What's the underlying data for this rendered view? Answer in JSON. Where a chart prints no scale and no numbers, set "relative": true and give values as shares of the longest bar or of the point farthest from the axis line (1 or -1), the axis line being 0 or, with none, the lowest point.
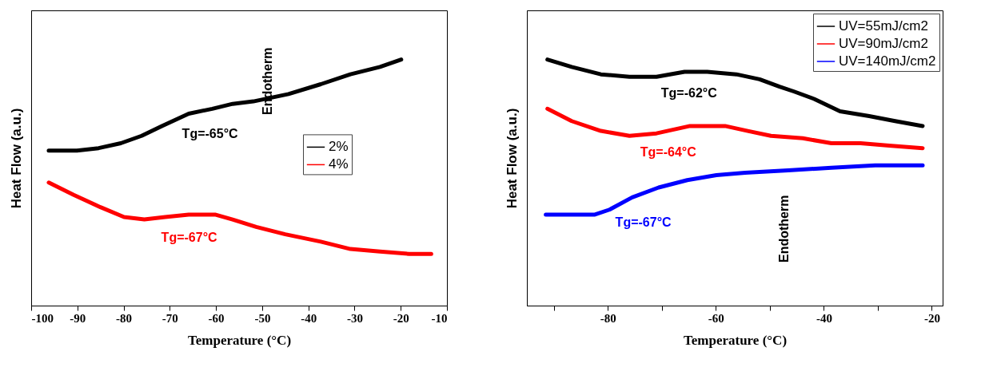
{
  "chart_data": [
    {
      "type": "line",
      "relative": true,
      "xlabel": "Temperature (°C)",
      "ylabel": "Heat Flow (a.u.)",
      "xlim": [
        -100,
        -10
      ],
      "xticks": [
        -100,
        -90,
        -80,
        -70,
        -60,
        -50,
        -40,
        -30,
        -20,
        -10
      ],
      "tick_labels": "x",
      "legend": "right",
      "grid": false,
      "series": [
        {
          "name": "2%",
          "color": "#000000",
          "x": [
            -96.2,
            -90.1,
            -85.4,
            -80.6,
            -76.1,
            -71.7,
            -65.9,
            -60.8,
            -56.4,
            -51.9,
            -44.3,
            -37.3,
            -30.9,
            -24.5,
            -19.9
          ],
          "values": [
            0.63,
            0.63,
            0.64,
            0.66,
            0.69,
            0.73,
            0.78,
            0.8,
            0.82,
            0.83,
            0.86,
            0.9,
            0.94,
            0.97,
            1.0
          ]
        },
        {
          "name": "4%",
          "color": "#ff0000",
          "x": [
            -96.2,
            -90.8,
            -85.0,
            -79.9,
            -75.5,
            -71.0,
            -65.9,
            -60.2,
            -56.4,
            -51.3,
            -45.0,
            -37.3,
            -30.9,
            -24.5,
            -18.2,
            -13.4
          ],
          "values": [
            0.5,
            0.45,
            0.4,
            0.36,
            0.35,
            0.36,
            0.37,
            0.37,
            0.35,
            0.32,
            0.29,
            0.26,
            0.23,
            0.22,
            0.21,
            0.21
          ]
        }
      ],
      "annotations": [
        "Tg=-65°C",
        "Tg=-67°C",
        "Endotherm"
      ]
    },
    {
      "type": "line",
      "relative": true,
      "xlabel": "Temperature (°C)",
      "ylabel": "Heat Flow (a.u.)",
      "xlim": [
        -95,
        -18
      ],
      "xticks": [
        {
          "value": -90,
          "label": null
        },
        -80,
        {
          "value": -70,
          "label": null
        },
        -60,
        {
          "value": -50,
          "label": null
        },
        -40,
        {
          "value": -30,
          "label": null
        },
        -20
      ],
      "tick_labels": "x",
      "legend": "top right",
      "grid": false,
      "series": [
        {
          "name": "UV=55mJ/cm2",
          "color": "#000000",
          "x": [
            -91.2,
            -86.7,
            -81.3,
            -76.0,
            -71.0,
            -65.8,
            -61.6,
            -56.2,
            -51.9,
            -48.2,
            -45.5,
            -41.8,
            -37.0,
            -31.6,
            -26.8,
            -21.7
          ],
          "values": [
            1.0,
            0.97,
            0.94,
            0.93,
            0.93,
            0.95,
            0.95,
            0.94,
            0.92,
            0.89,
            0.87,
            0.84,
            0.79,
            0.77,
            0.75,
            0.73
          ]
        },
        {
          "name": "UV=90mJ/cm2",
          "color": "#ff0000",
          "x": [
            -91.2,
            -86.7,
            -81.3,
            -76.0,
            -71.0,
            -64.8,
            -58.3,
            -54.1,
            -49.8,
            -43.9,
            -38.6,
            -33.2,
            -27.9,
            -21.7
          ],
          "values": [
            0.8,
            0.75,
            0.71,
            0.69,
            0.7,
            0.73,
            0.73,
            0.71,
            0.69,
            0.68,
            0.66,
            0.66,
            0.65,
            0.64
          ]
        },
        {
          "name": "UV=140mJ/cm2",
          "color": "#0000ff",
          "x": [
            -91.5,
            -82.4,
            -79.7,
            -75.5,
            -70.6,
            -65.3,
            -59.9,
            -54.6,
            -46.6,
            -38.6,
            -30.5,
            -21.7
          ],
          "values": [
            0.37,
            0.37,
            0.39,
            0.44,
            0.48,
            0.51,
            0.53,
            0.54,
            0.55,
            0.56,
            0.57,
            0.57
          ]
        }
      ],
      "annotations": [
        "Tg=-62°C",
        "Tg=-64°C",
        "Tg=-67°C",
        "Endotherm"
      ]
    }
  ]
}
